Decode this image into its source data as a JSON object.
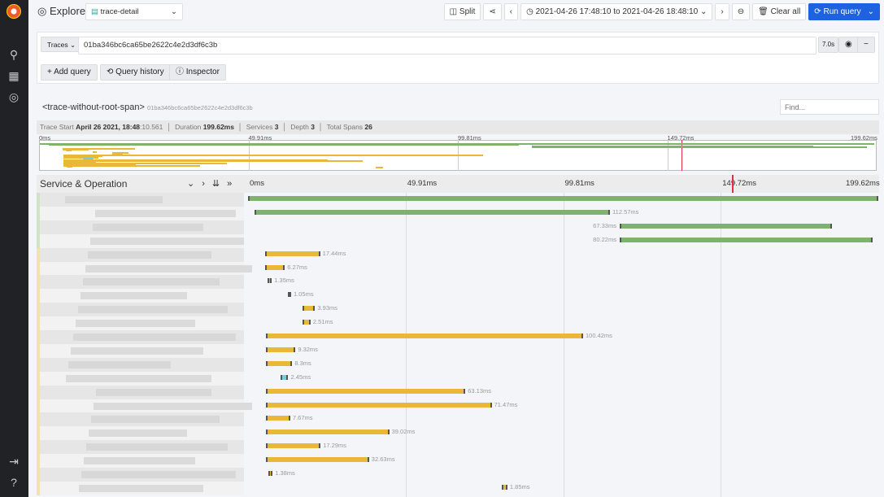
{
  "header": {
    "title": "Explore",
    "datasource": "trace-detail",
    "split": "Split",
    "time_range": "2021-04-26 17:48:10 to 2021-04-26 18:48:10",
    "clear_all": "Clear all",
    "run_query": "Run query"
  },
  "query": {
    "type": "Traces",
    "trace_id": "01ba346bc6ca65be2622c4e2d3df6c3b",
    "duration": "7.0s",
    "add_query": "Add query",
    "query_history": "Query history",
    "inspector": "Inspector"
  },
  "trace": {
    "name": "<trace-without-root-span>",
    "id": "01ba346bc6ca65be2622c4e2d3df6c3b",
    "find_placeholder": "Find...",
    "stats": {
      "start_label": "Trace Start",
      "start_value": "April 26 2021, 18:48",
      "start_ms": ":10.561",
      "duration_label": "Duration",
      "duration": "199.62ms",
      "services_label": "Services",
      "services": "3",
      "depth_label": "Depth",
      "depth": "3",
      "spans_label": "Total Spans",
      "spans": "26"
    },
    "ticks": [
      "0ms",
      "49.91ms",
      "99.81ms",
      "149.72ms",
      "199.62ms"
    ],
    "column_header": "Service & Operation",
    "total_ms": 199.62,
    "marker_ms": 153.2,
    "colors": {
      "green": "#7eb26d",
      "yellow": "#eab839",
      "teal": "#6ed0e0"
    },
    "spans": [
      {
        "start": 0,
        "dur": 199.62,
        "color": "green",
        "label": ""
      },
      {
        "start": 2.06,
        "dur": 112.57,
        "color": "green",
        "label": "112.57ms"
      },
      {
        "start": 117.7,
        "dur": 67.33,
        "color": "green",
        "label": "67.33ms",
        "left": true
      },
      {
        "start": 117.7,
        "dur": 80.22,
        "color": "green",
        "label": "80.22ms",
        "left": true
      },
      {
        "start": 5.4,
        "dur": 17.44,
        "color": "yellow",
        "label": "17.44ms"
      },
      {
        "start": 5.4,
        "dur": 6.27,
        "color": "yellow",
        "label": "6.27ms"
      },
      {
        "start": 6.2,
        "dur": 1.35,
        "color": "yellow",
        "label": "1.35ms"
      },
      {
        "start": 12.6,
        "dur": 1.05,
        "color": "yellow",
        "label": "1.05ms"
      },
      {
        "start": 17.3,
        "dur": 3.93,
        "color": "yellow",
        "label": "3.93ms"
      },
      {
        "start": 17.3,
        "dur": 2.51,
        "color": "yellow",
        "label": "2.51ms"
      },
      {
        "start": 5.7,
        "dur": 100.42,
        "color": "yellow",
        "label": "100.42ms"
      },
      {
        "start": 5.7,
        "dur": 9.32,
        "color": "yellow",
        "label": "9.32ms"
      },
      {
        "start": 5.7,
        "dur": 8.3,
        "color": "yellow",
        "label": "8.3ms"
      },
      {
        "start": 10.3,
        "dur": 2.45,
        "color": "teal",
        "label": "2.45ms"
      },
      {
        "start": 5.7,
        "dur": 63.13,
        "color": "yellow",
        "label": "63.13ms"
      },
      {
        "start": 5.7,
        "dur": 71.47,
        "color": "yellow",
        "label": "71.47ms"
      },
      {
        "start": 5.7,
        "dur": 7.67,
        "color": "yellow",
        "label": "7.67ms"
      },
      {
        "start": 5.7,
        "dur": 39.02,
        "color": "yellow",
        "label": "39.02ms"
      },
      {
        "start": 5.7,
        "dur": 17.29,
        "color": "yellow",
        "label": "17.29ms"
      },
      {
        "start": 5.7,
        "dur": 32.63,
        "color": "yellow",
        "label": "32.63ms"
      },
      {
        "start": 6.4,
        "dur": 1.38,
        "color": "yellow",
        "label": "1.38ms"
      },
      {
        "start": 80.3,
        "dur": 1.85,
        "color": "yellow",
        "label": "1.85ms"
      }
    ]
  }
}
